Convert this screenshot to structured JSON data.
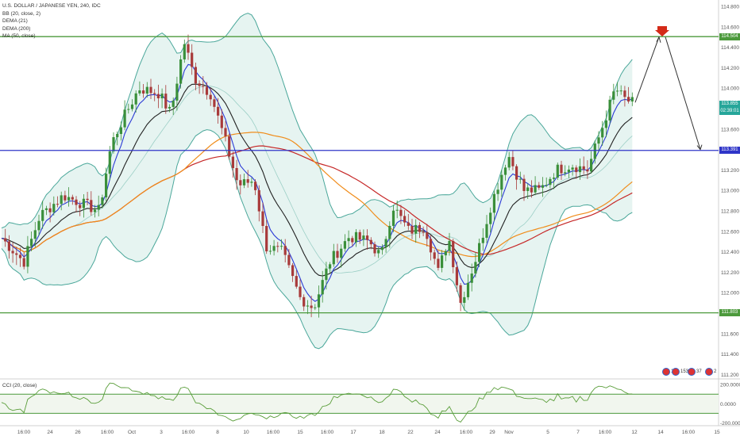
{
  "chart_data": {
    "type": "candlestick",
    "title": "U.S. DOLLAR / JAPANESE YEN, 240, IDC",
    "indicators": [
      "BB (20, close, 2)",
      "DEMA (21)",
      "DEMA (200)",
      "MA (50, close)"
    ],
    "ylim": [
      111.2,
      114.8
    ],
    "y_ticks": [
      "114.800",
      "114.600",
      "114.400",
      "114.200",
      "114.000",
      "113.800",
      "113.600",
      "113.400",
      "113.200",
      "113.000",
      "112.800",
      "112.600",
      "112.400",
      "112.200",
      "112.000",
      "111.800",
      "111.600",
      "111.400",
      "111.200"
    ],
    "x_ticks": [
      "16:00",
      "24",
      "26",
      "16:00",
      "Oct",
      "3",
      "16:00",
      "8",
      "10",
      "16:00",
      "15",
      "16:00",
      "17",
      "18",
      "22",
      "24",
      "16:00",
      "29",
      "Nov",
      "5",
      "7",
      "16:00",
      "12",
      "14",
      "16:00",
      "15"
    ],
    "horizontal_levels": [
      {
        "value": 114.504,
        "label": "114.504",
        "color": "#4c9a3c"
      },
      {
        "value": 113.391,
        "label": "113.391",
        "color": "#2f35c8"
      },
      {
        "value": 111.803,
        "label": "111.803",
        "color": "#4c9a3c"
      }
    ],
    "current_price": {
      "label": "113.855",
      "countdown": "02:39:01",
      "color": "#26a69a"
    },
    "projection": {
      "from": 113.86,
      "peak": 114.5,
      "target": 113.4
    },
    "events": [
      {
        "label": "10",
        "x": 838
      },
      {
        "label": "153",
        "x": 846
      },
      {
        "label": "37",
        "x": 868
      },
      {
        "label": "2",
        "x": 890
      }
    ],
    "cci": {
      "title": "CCI (20, close)",
      "y_ticks": [
        "200.0000",
        "0.0000",
        "-200.0000"
      ],
      "bands": [
        100,
        -100
      ],
      "ylim": [
        -230,
        260
      ]
    }
  }
}
